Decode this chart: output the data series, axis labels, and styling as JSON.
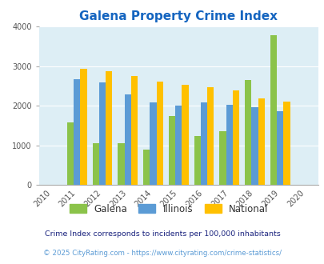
{
  "title": "Galena Property Crime Index",
  "all_years": [
    2010,
    2011,
    2012,
    2013,
    2014,
    2015,
    2016,
    2017,
    2018,
    2019,
    2020
  ],
  "data_years": [
    2011,
    2012,
    2013,
    2014,
    2015,
    2016,
    2017,
    2018,
    2019
  ],
  "galena": [
    1580,
    1050,
    1060,
    880,
    1730,
    1240,
    1350,
    2650,
    3780
  ],
  "illinois": [
    2670,
    2580,
    2280,
    2090,
    2000,
    2080,
    2020,
    1950,
    1860
  ],
  "national": [
    2920,
    2870,
    2750,
    2600,
    2530,
    2470,
    2390,
    2190,
    2110
  ],
  "galena_color": "#8bc34a",
  "illinois_color": "#5b9bd5",
  "national_color": "#ffc000",
  "fig_bg_color": "#ffffff",
  "plot_bg_color": "#ddeef5",
  "ylim": [
    0,
    4000
  ],
  "yticks": [
    0,
    1000,
    2000,
    3000,
    4000
  ],
  "title_color": "#1565c0",
  "title_fontsize": 11,
  "legend_labels": [
    "Galena",
    "Illinois",
    "National"
  ],
  "footnote1": "Crime Index corresponds to incidents per 100,000 inhabitants",
  "footnote2": "© 2025 CityRating.com - https://www.cityrating.com/crime-statistics/",
  "footnote1_color": "#1a237e",
  "footnote2_color": "#5b9bd5",
  "bar_width": 0.26
}
